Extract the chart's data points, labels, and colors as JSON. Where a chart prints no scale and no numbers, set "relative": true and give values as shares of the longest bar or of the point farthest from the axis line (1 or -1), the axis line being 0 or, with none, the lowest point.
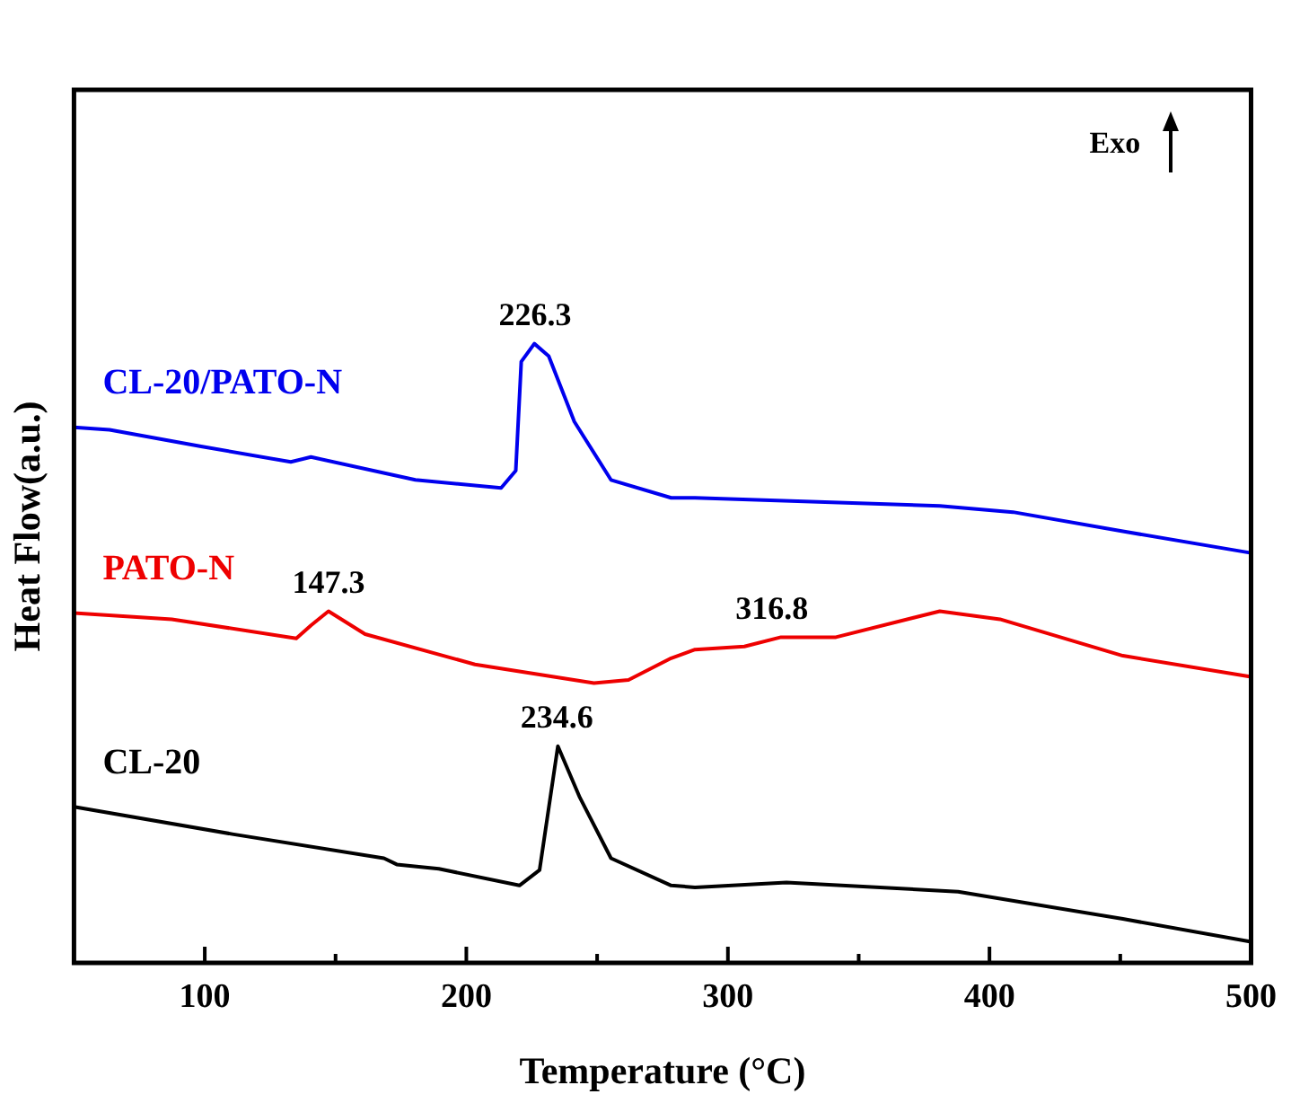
{
  "chart_data": {
    "type": "line",
    "relative": true,
    "xlabel": "Temperature (°C)",
    "ylabel": "Heat Flow(a.u.)",
    "xlim": [
      50,
      500
    ],
    "xticks": [
      {
        "value": 100,
        "label": "100"
      },
      {
        "value": 150,
        "label": null
      },
      {
        "value": 200,
        "label": "200"
      },
      {
        "value": 250,
        "label": null
      },
      {
        "value": 300,
        "label": "300"
      },
      {
        "value": 350,
        "label": null
      },
      {
        "value": 400,
        "label": "400"
      },
      {
        "value": 450,
        "label": null
      },
      {
        "value": 500,
        "label": "500"
      }
    ],
    "grid": false,
    "legend": false,
    "marker": "none",
    "line_style": "solid",
    "series": [
      {
        "name": "CL-20/PATO-N",
        "color": "#0000ee",
        "x": [
          50,
          63.6,
          98.6,
          132.9,
          140.6,
          180.5,
          213.3,
          218.9,
          221,
          226,
          231.5,
          241.3,
          255.3,
          278.3,
          287.4,
          381,
          409,
          451,
          500
        ],
        "values": [
          0.865,
          0.861,
          0.834,
          0.809,
          0.817,
          0.78,
          0.767,
          0.795,
          0.971,
          1.0,
          0.98,
          0.874,
          0.78,
          0.751,
          0.751,
          0.738,
          0.728,
          0.697,
          0.662
        ]
      },
      {
        "name": "PATO-N",
        "color": "#ee0000",
        "x": [
          50,
          87.4,
          135,
          140.6,
          147.3,
          161.3,
          203.3,
          248.8,
          262,
          278.3,
          287.4,
          306.3,
          320.3,
          341.3,
          381,
          404,
          451,
          500
        ],
        "values": [
          0.565,
          0.555,
          0.524,
          0.545,
          0.568,
          0.531,
          0.482,
          0.452,
          0.457,
          0.492,
          0.506,
          0.511,
          0.526,
          0.526,
          0.568,
          0.555,
          0.496,
          0.462
        ]
      },
      {
        "name": "CL-20",
        "color": "#000000",
        "x": [
          50,
          110.5,
          168.5,
          173.4,
          189.5,
          220.3,
          228,
          235,
          243.4,
          255.3,
          278.3,
          287.4,
          322.4,
          388,
          451,
          500
        ],
        "values": [
          0.252,
          0.208,
          0.169,
          0.159,
          0.152,
          0.125,
          0.15,
          0.35,
          0.267,
          0.169,
          0.125,
          0.122,
          0.13,
          0.115,
          0.071,
          0.034
        ]
      }
    ],
    "annotations": [
      {
        "text": "226.3",
        "x": 226.3,
        "y": 1.0
      },
      {
        "text": "147.3",
        "x": 147.3,
        "y": 0.568
      },
      {
        "text": "316.8",
        "x": 316.8,
        "y": 0.526
      },
      {
        "text": "234.6",
        "x": 234.6,
        "y": 0.35
      },
      "Exo"
    ]
  }
}
